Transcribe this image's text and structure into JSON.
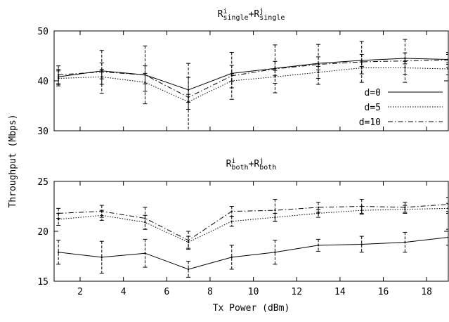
{
  "ylabel": "Throughput (Mbps)",
  "chart_data": [
    {
      "type": "line",
      "title": {
        "base1": "R",
        "sup1": "i",
        "sub1": "single",
        "plus": "+",
        "base2": "R",
        "sup2": "j",
        "sub2": "single"
      },
      "xlabel": "",
      "ylabel": "Throughput (Mbps)",
      "xlim": [
        0.8,
        19
      ],
      "ylim": [
        30,
        50
      ],
      "yticks": [
        30,
        40,
        50
      ],
      "xticks": [],
      "legend_position": "bottom-right",
      "x": [
        1,
        3,
        5,
        7,
        9,
        11,
        13,
        15,
        17,
        19
      ],
      "series": [
        {
          "name": "d=0",
          "style": "solid",
          "values": [
            40.8,
            42.0,
            41.2,
            38.2,
            41.5,
            42.5,
            43.5,
            44.1,
            44.5,
            44.3
          ],
          "err": [
            1.5,
            1.6,
            1.8,
            2.5,
            1.6,
            1.4,
            1.3,
            1.2,
            1.1,
            1.0
          ]
        },
        {
          "name": "d=5",
          "style": "dotted",
          "values": [
            40.5,
            40.8,
            39.7,
            35.8,
            40.0,
            40.8,
            41.7,
            42.6,
            42.6,
            42.4
          ],
          "err": [
            1.5,
            1.5,
            1.8,
            1.5,
            1.4,
            1.3,
            1.2,
            1.2,
            1.3,
            1.2
          ]
        },
        {
          "name": "d=10",
          "style": "dashdot",
          "values": [
            41.2,
            41.8,
            41.2,
            36.7,
            41.0,
            42.4,
            43.3,
            43.8,
            44.0,
            44.2
          ],
          "err": [
            1.8,
            4.3,
            5.8,
            6.8,
            4.7,
            4.8,
            4.0,
            4.1,
            4.3,
            1.5
          ]
        }
      ]
    },
    {
      "type": "line",
      "title": {
        "base1": "R",
        "sup1": "i",
        "sub1": "both",
        "plus": "+",
        "base2": "R",
        "sup2": "j",
        "sub2": "both"
      },
      "xlabel": "Tx Power (dBm)",
      "ylabel": "Throughput (Mbps)",
      "xlim": [
        0.8,
        19
      ],
      "ylim": [
        15,
        25
      ],
      "yticks": [
        15,
        20,
        25
      ],
      "xticks": [
        2,
        4,
        6,
        8,
        10,
        12,
        14,
        16,
        18
      ],
      "x": [
        1,
        3,
        5,
        7,
        9,
        11,
        13,
        15,
        17,
        19
      ],
      "series": [
        {
          "name": "d=0",
          "style": "solid",
          "values": [
            17.9,
            17.4,
            17.8,
            16.2,
            17.4,
            17.9,
            18.6,
            18.7,
            18.9,
            19.4
          ],
          "err": [
            1.2,
            1.6,
            1.4,
            0.8,
            1.2,
            1.2,
            0.6,
            0.8,
            1.0,
            0.8
          ]
        },
        {
          "name": "d=5",
          "style": "dotted",
          "values": [
            21.2,
            21.6,
            20.9,
            18.9,
            21.0,
            21.4,
            21.8,
            22.1,
            22.2,
            22.3
          ],
          "err": [
            0.6,
            0.5,
            0.7,
            0.6,
            0.5,
            0.4,
            0.4,
            0.4,
            0.4,
            0.5
          ]
        },
        {
          "name": "d=10",
          "style": "dashdot",
          "values": [
            21.8,
            22.0,
            21.3,
            19.1,
            22.0,
            22.1,
            22.4,
            22.5,
            22.4,
            22.7
          ],
          "err": [
            0.5,
            0.6,
            1.1,
            0.9,
            0.5,
            1.1,
            0.5,
            0.7,
            0.5,
            0.7
          ]
        }
      ]
    }
  ]
}
